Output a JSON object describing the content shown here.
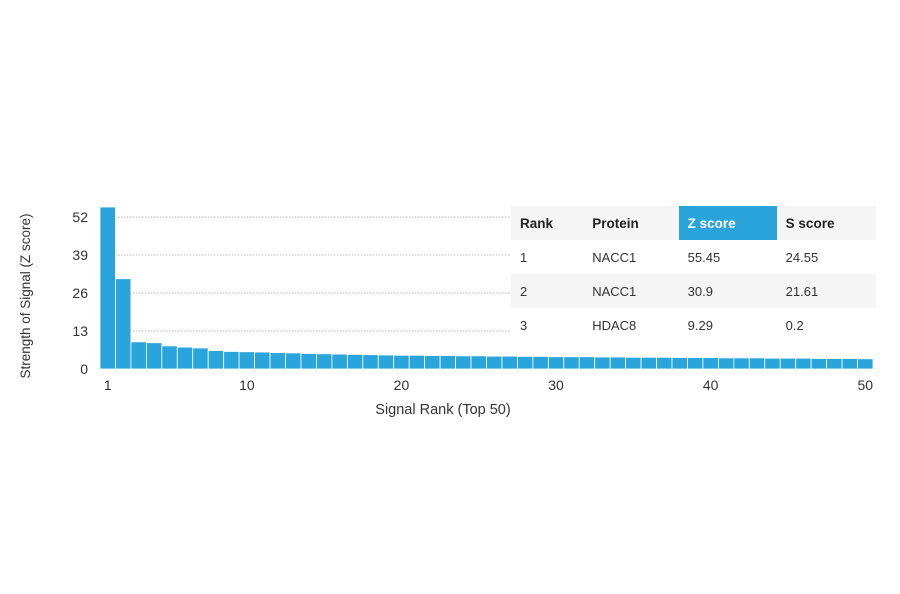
{
  "chart_data": {
    "type": "bar",
    "xlabel": "Signal Rank (Top 50)",
    "ylabel": "Strength of Signal (Z score)",
    "ylim": [
      0,
      55.45
    ],
    "yticks": [
      0,
      13,
      26,
      39,
      52
    ],
    "xticks": [
      1,
      10,
      20,
      30,
      40,
      50
    ],
    "grid": "horizontal dotted",
    "bar_color": "#2aa5dc",
    "ranks": [
      1,
      2,
      3,
      4,
      5,
      6,
      7,
      8,
      9,
      10,
      11,
      12,
      13,
      14,
      15,
      16,
      17,
      18,
      19,
      20,
      21,
      22,
      23,
      24,
      25,
      26,
      27,
      28,
      29,
      30,
      31,
      32,
      33,
      34,
      35,
      36,
      37,
      38,
      39,
      40,
      41,
      42,
      43,
      44,
      45,
      46,
      47,
      48,
      49,
      50
    ],
    "values": [
      55.45,
      30.9,
      9.29,
      9.0,
      7.9,
      7.5,
      7.2,
      6.3,
      6.0,
      5.9,
      5.8,
      5.6,
      5.5,
      5.3,
      5.2,
      5.1,
      5.0,
      4.9,
      4.8,
      4.7,
      4.7,
      4.6,
      4.6,
      4.5,
      4.5,
      4.4,
      4.4,
      4.3,
      4.3,
      4.2,
      4.2,
      4.2,
      4.1,
      4.1,
      4.0,
      4.0,
      4.0,
      3.9,
      3.9,
      3.9,
      3.8,
      3.8,
      3.8,
      3.7,
      3.7,
      3.7,
      3.6,
      3.6,
      3.6,
      3.5
    ]
  },
  "table": {
    "headers": [
      "Rank",
      "Protein",
      "Z score",
      "S score"
    ],
    "highlight_color": "#2aa5dc",
    "rows": [
      [
        "1",
        "NACC1",
        "55.45",
        "24.55"
      ],
      [
        "2",
        "NACC1",
        "30.9",
        "21.61"
      ],
      [
        "3",
        "HDAC8",
        "9.29",
        "0.2"
      ]
    ]
  }
}
